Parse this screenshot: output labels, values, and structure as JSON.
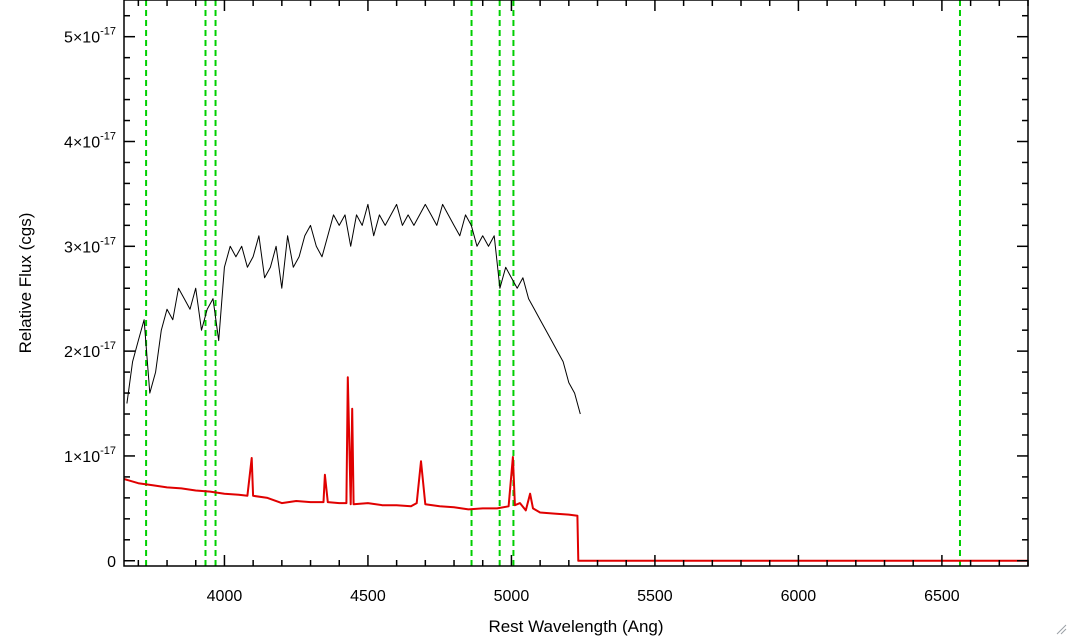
{
  "chart_data": {
    "type": "line",
    "xlabel": "Rest Wavelength (Ang)",
    "ylabel": "Relative Flux (cgs)",
    "xlim": [
      3650,
      6800
    ],
    "ylim": [
      -0.05,
      5.35
    ],
    "y_unit_exponent": -17,
    "x_ticks": [
      4000,
      4500,
      5000,
      5500,
      6000,
      6500
    ],
    "x_tick_labels": [
      "4000",
      "4500",
      "5000",
      "5500",
      "6000",
      "6500"
    ],
    "y_ticks": [
      0,
      1,
      2,
      3,
      4,
      5
    ],
    "y_tick_labels": [
      {
        "mantissa": "0",
        "times": "",
        "base": "",
        "exp": ""
      },
      {
        "mantissa": "1",
        "times": "×",
        "base": "10",
        "exp": "-17"
      },
      {
        "mantissa": "2",
        "times": "×",
        "base": "10",
        "exp": "-17"
      },
      {
        "mantissa": "3",
        "times": "×",
        "base": "10",
        "exp": "-17"
      },
      {
        "mantissa": "4",
        "times": "×",
        "base": "10",
        "exp": "-17"
      },
      {
        "mantissa": "5",
        "times": "×",
        "base": "10",
        "exp": "-17"
      }
    ],
    "grid": false,
    "legend": "none",
    "reference_lines": {
      "x": [
        3727,
        3934,
        3969,
        4861,
        4959,
        5007,
        6563
      ],
      "color": "#00d000",
      "style": "dashed"
    },
    "series": [
      {
        "color": "#000000",
        "kind": "observed spectrum",
        "x": [
          3660,
          3680,
          3700,
          3720,
          3740,
          3760,
          3780,
          3800,
          3820,
          3840,
          3860,
          3880,
          3900,
          3920,
          3940,
          3960,
          3980,
          4000,
          4020,
          4040,
          4060,
          4080,
          4100,
          4120,
          4140,
          4160,
          4180,
          4200,
          4220,
          4240,
          4260,
          4280,
          4300,
          4320,
          4340,
          4360,
          4380,
          4400,
          4420,
          4440,
          4460,
          4480,
          4500,
          4520,
          4540,
          4560,
          4580,
          4600,
          4620,
          4640,
          4660,
          4680,
          4700,
          4720,
          4740,
          4760,
          4780,
          4800,
          4820,
          4840,
          4860,
          4880,
          4900,
          4920,
          4940,
          4960,
          4980,
          5000,
          5020,
          5040,
          5060,
          5080,
          5100,
          5120,
          5140,
          5160,
          5180,
          5200,
          5220,
          5240
        ],
        "y": [
          1.5,
          1.9,
          2.1,
          2.3,
          1.6,
          1.8,
          2.2,
          2.4,
          2.3,
          2.6,
          2.5,
          2.4,
          2.6,
          2.2,
          2.4,
          2.5,
          2.1,
          2.8,
          3.0,
          2.9,
          3.0,
          2.8,
          2.9,
          3.1,
          2.7,
          2.8,
          3.0,
          2.6,
          3.1,
          2.8,
          2.9,
          3.1,
          3.2,
          3.0,
          2.9,
          3.1,
          3.3,
          3.2,
          3.3,
          3.0,
          3.3,
          3.2,
          3.4,
          3.1,
          3.3,
          3.2,
          3.3,
          3.4,
          3.2,
          3.3,
          3.2,
          3.3,
          3.4,
          3.3,
          3.2,
          3.4,
          3.3,
          3.2,
          3.1,
          3.3,
          3.2,
          3.0,
          3.1,
          3.0,
          3.1,
          2.6,
          2.8,
          2.7,
          2.6,
          2.7,
          2.5,
          2.4,
          2.3,
          2.2,
          2.1,
          2.0,
          1.9,
          1.7,
          1.6,
          1.4
        ]
      },
      {
        "color": "#e00000",
        "kind": "model spectrum",
        "x": [
          3650,
          3700,
          3750,
          3800,
          3850,
          3900,
          3950,
          4000,
          4050,
          4080,
          4095,
          4100,
          4150,
          4200,
          4250,
          4300,
          4345,
          4350,
          4360,
          4400,
          4425,
          4430,
          4440,
          4445,
          4450,
          4500,
          4550,
          4600,
          4650,
          4670,
          4685,
          4700,
          4750,
          4800,
          4850,
          4900,
          4950,
          4990,
          5005,
          5012,
          5030,
          5050,
          5065,
          5075,
          5100,
          5150,
          5200,
          5230,
          5233,
          5240,
          5300,
          5400,
          5500,
          5600,
          5700,
          5800,
          5900,
          6000,
          6100,
          6200,
          6300,
          6400,
          6500,
          6600,
          6700,
          6800
        ],
        "y": [
          0.78,
          0.74,
          0.72,
          0.7,
          0.69,
          0.67,
          0.66,
          0.64,
          0.63,
          0.62,
          0.98,
          0.62,
          0.6,
          0.55,
          0.57,
          0.56,
          0.56,
          0.82,
          0.56,
          0.55,
          0.55,
          1.75,
          0.54,
          1.45,
          0.54,
          0.55,
          0.53,
          0.53,
          0.52,
          0.55,
          0.95,
          0.54,
          0.52,
          0.51,
          0.49,
          0.5,
          0.5,
          0.52,
          0.99,
          0.53,
          0.55,
          0.48,
          0.64,
          0.5,
          0.46,
          0.45,
          0.44,
          0.43,
          0.0,
          0.0,
          0.0,
          0.0,
          0.0,
          0.0,
          0.0,
          0.0,
          0.0,
          0.0,
          0.0,
          0.0,
          0.0,
          0.0,
          0.0,
          0.0,
          0.0,
          0.0
        ]
      }
    ]
  },
  "icons": {
    "corner": "resize-grip-icon"
  }
}
